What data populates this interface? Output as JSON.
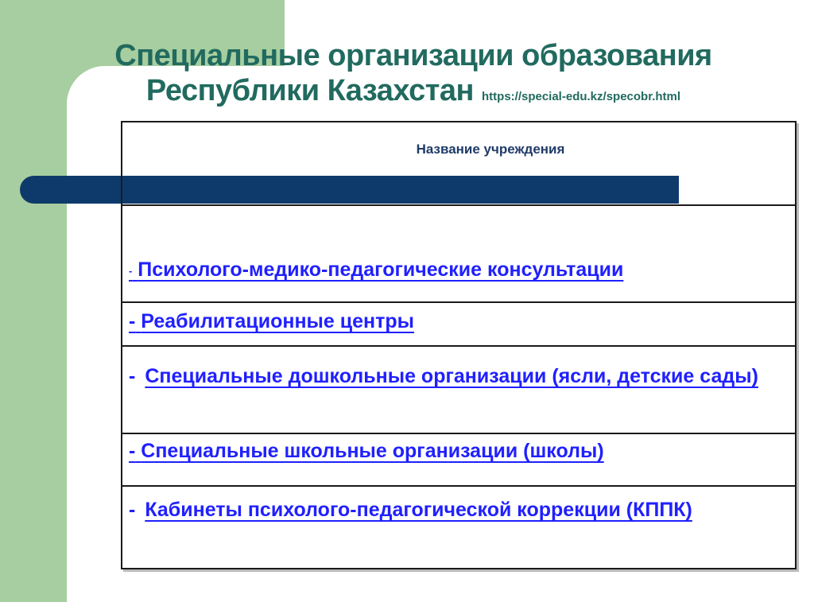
{
  "title": {
    "line1": "Специальные организации образования",
    "line2": "Республики Казахстан",
    "url": "https://special-edu.kz/specobr.html"
  },
  "table": {
    "header": "Название учреждения",
    "rows": [
      {
        "dash": "-",
        "label": "Психолого-медико-педагогические консультации"
      },
      {
        "dash": "-",
        "label": "Реабилитационные центры"
      },
      {
        "dash": "-",
        "label": "Специальные дошкольные организации (ясли, детские сады)"
      },
      {
        "dash": "-",
        "label": "Специальные школьные организации (школы)"
      },
      {
        "dash": "-",
        "label": "Кабинеты психолого-педагогической коррекции (КППК)"
      }
    ]
  },
  "colors": {
    "background_green": "#A7CEA0",
    "title_teal": "#216A5F",
    "bar_navy": "#0E3A6B",
    "header_navy": "#1F3B68",
    "link_blue": "#2020FF",
    "table_border": "#1A1A1A"
  }
}
